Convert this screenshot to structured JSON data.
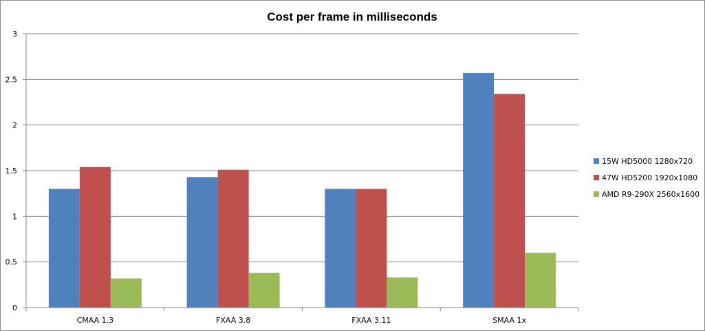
{
  "chart_data": {
    "type": "bar",
    "title": "Cost per frame in milliseconds",
    "categories": [
      "CMAA 1.3",
      "FXAA 3.8",
      "FXAA 3.11",
      "SMAA 1x"
    ],
    "series": [
      {
        "name": "15W HD5000 1280x720",
        "color": "#4f81bd",
        "values": [
          1.3,
          1.43,
          1.3,
          2.57
        ]
      },
      {
        "name": "47W HD5200 1920x1080",
        "color": "#c0504d",
        "values": [
          1.54,
          1.51,
          1.3,
          2.34
        ]
      },
      {
        "name": "AMD R9-290X 2560x1600",
        "color": "#9bbb59",
        "values": [
          0.32,
          0.38,
          0.33,
          0.6
        ]
      }
    ],
    "ylim": [
      0,
      3
    ],
    "yticks": [
      "0",
      "0.5",
      "1",
      "1.5",
      "2",
      "2.5",
      "3"
    ],
    "ytick_values": [
      0,
      0.5,
      1,
      1.5,
      2,
      2.5,
      3
    ],
    "grid": true,
    "legend_position": "right"
  }
}
